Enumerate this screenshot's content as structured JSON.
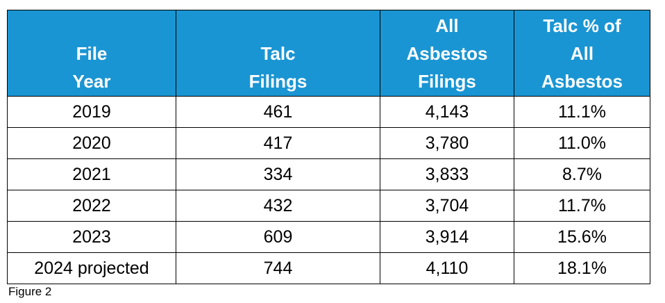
{
  "table": {
    "header_color": "#1a95d3",
    "headers": [
      [
        "File",
        "Year"
      ],
      [
        "Talc",
        "Filings"
      ],
      [
        "All",
        "Asbestos",
        "Filings"
      ],
      [
        "Talc % of",
        "All",
        "Asbestos"
      ]
    ],
    "rows": [
      [
        "2019",
        "461",
        "4,143",
        "11.1%"
      ],
      [
        "2020",
        "417",
        "3,780",
        "11.0%"
      ],
      [
        "2021",
        "334",
        "3,833",
        "8.7%"
      ],
      [
        "2022",
        "432",
        "3,704",
        "11.7%"
      ],
      [
        "2023",
        "609",
        "3,914",
        "15.6%"
      ],
      [
        "2024 projected",
        "744",
        "4,110",
        "18.1%"
      ]
    ]
  },
  "caption": "Figure 2"
}
